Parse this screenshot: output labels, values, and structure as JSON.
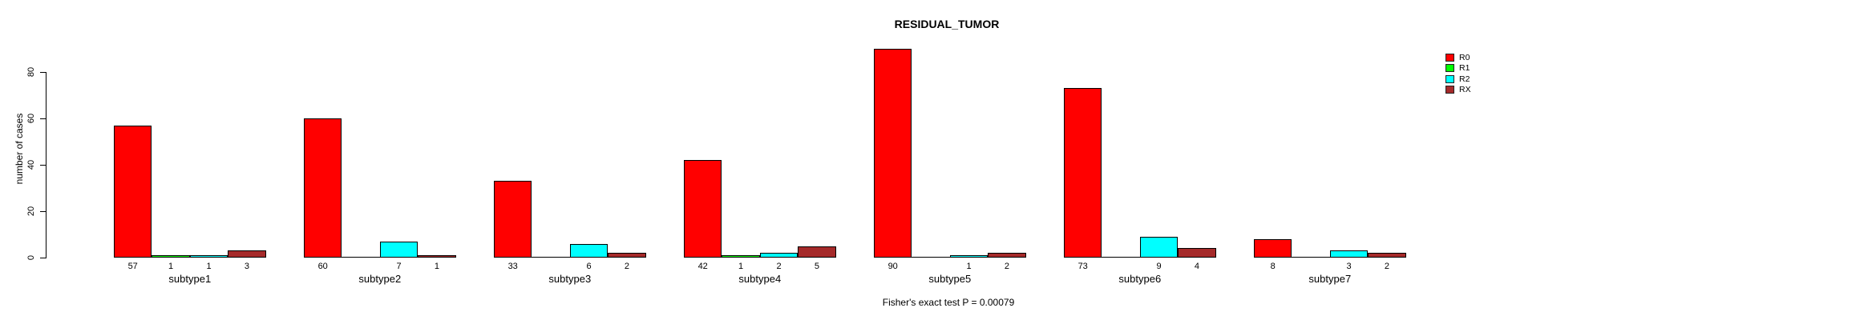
{
  "chart_data": {
    "type": "bar",
    "title": "RESIDUAL_TUMOR",
    "ylabel": "number of cases",
    "xlabel": "",
    "categories": [
      "subtype1",
      "subtype2",
      "subtype3",
      "subtype4",
      "subtype5",
      "subtype6",
      "subtype7"
    ],
    "series": [
      {
        "name": "R0",
        "color": "#FF0000",
        "values": [
          57,
          60,
          33,
          42,
          90,
          73,
          8
        ]
      },
      {
        "name": "R1",
        "color": "#00FF00",
        "values": [
          1,
          0,
          0,
          1,
          0,
          0,
          0
        ]
      },
      {
        "name": "R2",
        "color": "#00FFFF",
        "values": [
          1,
          7,
          6,
          2,
          1,
          9,
          3
        ]
      },
      {
        "name": "RX",
        "color": "#A52A2A",
        "values": [
          3,
          1,
          2,
          5,
          2,
          4,
          2
        ]
      }
    ],
    "yticks": [
      0,
      20,
      40,
      60,
      80
    ],
    "ylim": [
      0,
      93
    ],
    "grid": false,
    "value_labels": true,
    "zero_bars_drawn_as_baseline_line": true,
    "legend": {
      "position": "top-right",
      "entries": [
        "R0",
        "R1",
        "R2",
        "RX"
      ]
    },
    "annotation": "Fisher's exact test P = 0.00079"
  }
}
